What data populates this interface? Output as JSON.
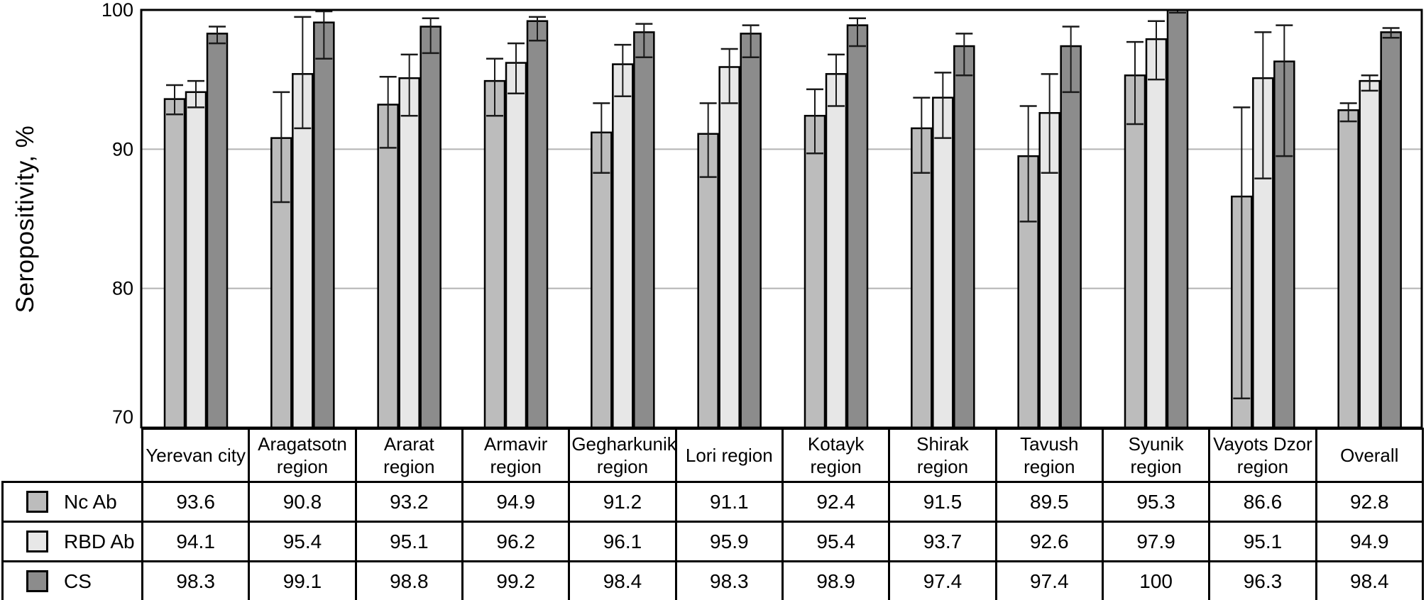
{
  "chart_data": {
    "type": "bar",
    "title": "",
    "xlabel": "",
    "ylabel": "Seropositivity, %",
    "ylim": [
      70,
      100
    ],
    "yticks": [
      100,
      90,
      80,
      70
    ],
    "gridlines": [
      90,
      80
    ],
    "grid": true,
    "error_bars": true,
    "legend_position": "table-left",
    "axis_color": "#000000",
    "gridline_color": "#b3b3b3",
    "categories": [
      "Yerevan city",
      "Aragatsotn region",
      "Ararat region",
      "Armavir region",
      "Gegharkunik region",
      "Lori region",
      "Kotayk region",
      "Shirak region",
      "Tavush region",
      "Syunik region",
      "Vayots Dzor region",
      "Overall"
    ],
    "series": [
      {
        "name": "Nc Ab",
        "color": "#bcbcbc",
        "values": [
          93.6,
          90.8,
          93.2,
          94.9,
          91.2,
          91.1,
          92.4,
          91.5,
          89.5,
          95.3,
          86.6,
          92.8
        ],
        "err_lo": [
          92.5,
          86.2,
          90.1,
          92.4,
          88.3,
          88.0,
          89.7,
          88.3,
          84.8,
          91.8,
          72.1,
          92.0
        ],
        "err_hi": [
          94.6,
          94.1,
          95.2,
          96.5,
          93.3,
          93.3,
          94.3,
          93.7,
          93.1,
          97.7,
          93.0,
          93.3
        ]
      },
      {
        "name": "RBD Ab",
        "color": "#e7e7e7",
        "values": [
          94.1,
          95.4,
          95.1,
          96.2,
          96.1,
          95.9,
          95.4,
          93.7,
          92.6,
          97.9,
          95.1,
          94.9
        ],
        "err_lo": [
          93.0,
          91.5,
          92.4,
          94.0,
          93.8,
          93.3,
          93.1,
          90.8,
          88.3,
          95.0,
          87.9,
          94.2
        ],
        "err_hi": [
          94.9,
          99.5,
          96.8,
          97.6,
          97.5,
          97.2,
          96.8,
          95.5,
          95.4,
          99.2,
          98.4,
          95.3
        ]
      },
      {
        "name": "CS",
        "color": "#8c8c8c",
        "values": [
          98.3,
          99.1,
          98.8,
          99.2,
          98.4,
          98.3,
          98.9,
          97.4,
          97.4,
          100,
          96.3,
          98.4
        ],
        "err_lo": [
          97.6,
          96.5,
          96.9,
          97.8,
          96.6,
          96.6,
          97.4,
          95.3,
          94.1,
          99.8,
          89.5,
          98.0
        ],
        "err_hi": [
          98.8,
          99.9,
          99.4,
          99.5,
          99.0,
          98.9,
          99.4,
          98.3,
          98.8,
          100,
          98.9,
          98.7
        ]
      }
    ]
  }
}
